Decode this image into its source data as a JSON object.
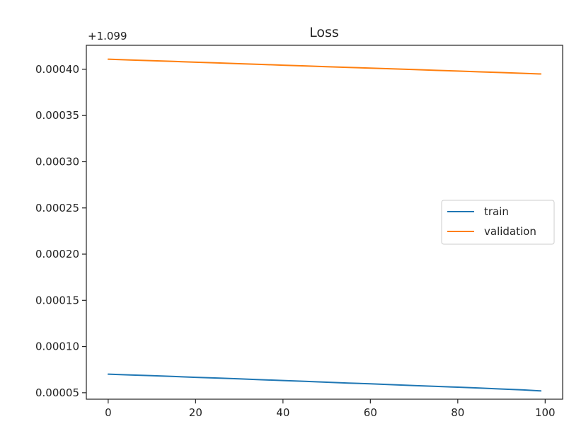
{
  "chart_data": {
    "type": "line",
    "title": "Loss",
    "xlabel": "",
    "ylabel": "",
    "y_offset_text": "+1.099",
    "y_offset": 1.099,
    "xlim": [
      -5,
      104
    ],
    "ylim": [
      4.3e-05,
      0.000426
    ],
    "x_ticks": [
      0,
      20,
      40,
      60,
      80,
      100
    ],
    "x_tick_labels": [
      "0",
      "20",
      "40",
      "60",
      "80",
      "100"
    ],
    "y_ticks": [
      5e-05,
      0.0001,
      0.00015,
      0.0002,
      0.00025,
      0.0003,
      0.00035,
      0.0004
    ],
    "y_tick_labels": [
      "0.00005",
      "0.00010",
      "0.00015",
      "0.00020",
      "0.00025",
      "0.00030",
      "0.00035",
      "0.00040"
    ],
    "grid": false,
    "legend_position": "center-right",
    "series": [
      {
        "name": "train",
        "color": "#1f77b4",
        "x": [
          0,
          5,
          10,
          15,
          20,
          25,
          30,
          35,
          40,
          45,
          50,
          55,
          60,
          65,
          70,
          75,
          80,
          85,
          90,
          95,
          99
        ],
        "values": [
          7.01e-05,
          6.93e-05,
          6.84e-05,
          6.76e-05,
          6.67e-05,
          6.59e-05,
          6.5e-05,
          6.41e-05,
          6.32e-05,
          6.23e-05,
          6.14e-05,
          6.05e-05,
          5.96e-05,
          5.87e-05,
          5.78e-05,
          5.69e-05,
          5.6e-05,
          5.5e-05,
          5.4e-05,
          5.3e-05,
          5.2e-05
        ]
      },
      {
        "name": "validation",
        "color": "#ff7f0e",
        "x": [
          0,
          5,
          10,
          15,
          20,
          25,
          30,
          35,
          40,
          45,
          50,
          55,
          60,
          65,
          70,
          75,
          80,
          85,
          90,
          95,
          99
        ],
        "values": [
          0.000411,
          0.0004101,
          0.0004093,
          0.0004085,
          0.0004077,
          0.0004069,
          0.0004061,
          0.0004053,
          0.0004045,
          0.0004037,
          0.0004029,
          0.0004021,
          0.0004013,
          0.0004005,
          0.0003997,
          0.0003989,
          0.0003981,
          0.0003973,
          0.0003965,
          0.0003957,
          0.000395
        ]
      }
    ]
  }
}
